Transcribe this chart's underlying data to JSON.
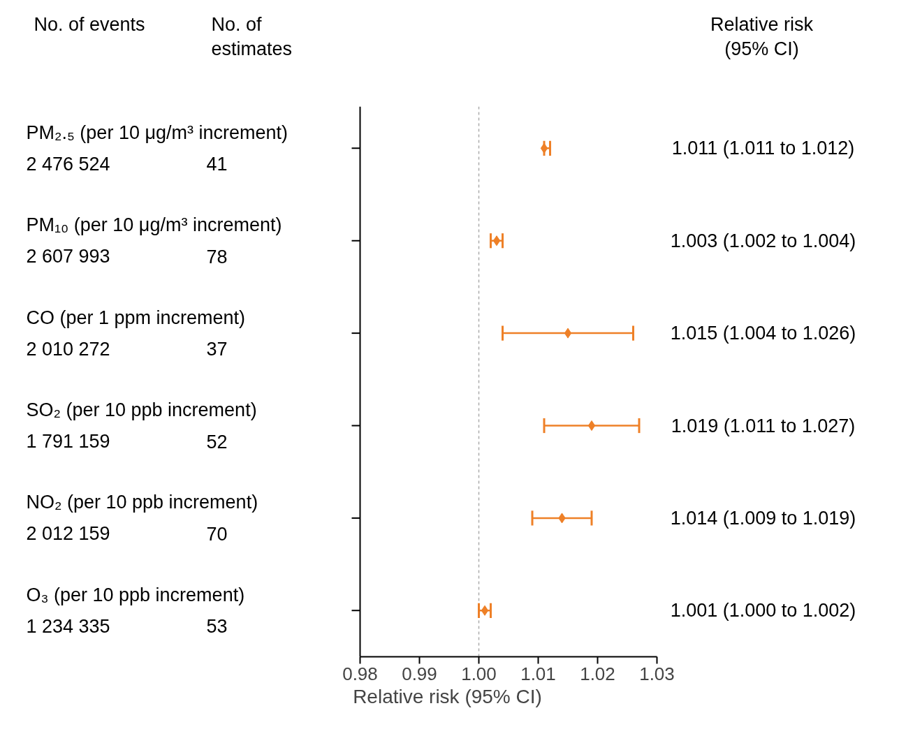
{
  "chart_data": {
    "type": "scatter",
    "orientation": "horizontal",
    "categories": [
      "PM₂.₅ (per 10 μg/m³ increment)",
      "PM₁₀ (per 10 μg/m³ increment)",
      "CO (per 1 ppm increment)",
      "SO₂ (per 10 ppb increment)",
      "NO₂ (per 10 ppb increment)",
      "O₃ (per 10 ppb increment)"
    ],
    "values": [
      1.011,
      1.003,
      1.015,
      1.019,
      1.014,
      1.001
    ],
    "errors": [
      [
        1.011,
        1.012
      ],
      [
        1.002,
        1.004
      ],
      [
        1.004,
        1.026
      ],
      [
        1.011,
        1.027
      ],
      [
        1.009,
        1.019
      ],
      [
        1.0,
        1.002
      ]
    ],
    "value_labels": [
      "1.011 (1.011 to 1.012)",
      "1.003 (1.002 to 1.004)",
      "1.015 (1.004 to 1.026)",
      "1.019 (1.011 to 1.027)",
      "1.014 (1.009 to 1.019)",
      "1.001 (1.000 to 1.002)"
    ],
    "color": "#ee8027",
    "marker": "diamond",
    "xlim": [
      0.98,
      1.03
    ],
    "xticks": [
      0.98,
      0.99,
      {
        "value": 1.0,
        "label": "1.00"
      },
      1.01,
      1.02,
      1.03
    ],
    "xlabel": "Relative risk (95% CI)",
    "ref_lines": [
      {
        "axis": "x",
        "value": 1.0,
        "color": "#aaaaaa",
        "line_style": "dashed"
      }
    ],
    "annotations": [
      "No. of events",
      "No. of\nestimates",
      "Relative risk\n(95% CI)",
      "2 476 524",
      "41",
      "2 607 993",
      "78",
      "2 010 272",
      "37",
      "1 791 159",
      "52",
      "2 012 159",
      "70",
      "1 234 335",
      "53"
    ]
  }
}
